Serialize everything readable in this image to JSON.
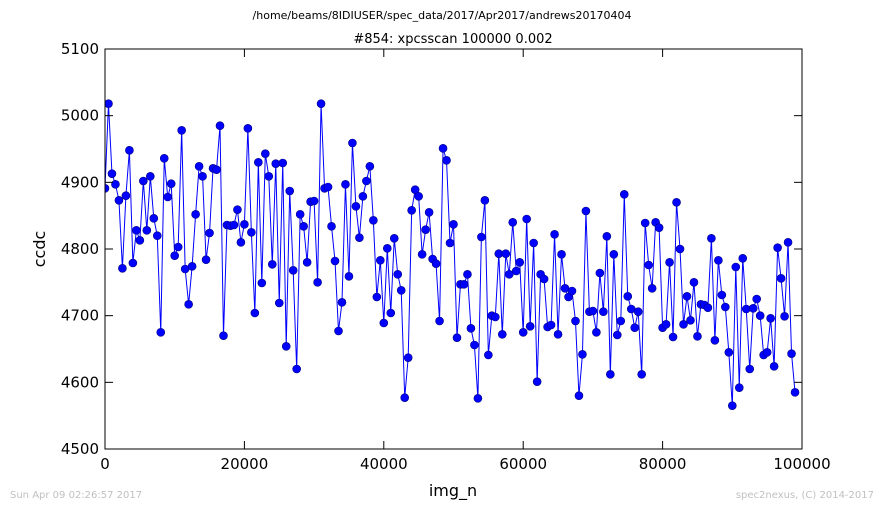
{
  "chart_data": {
    "type": "scatter",
    "suptitle": "/home/beams/8IDIUSER/spec_data/2017/Apr2017/andrews20170404",
    "title": "#854: xpcsscan 100000 0.002",
    "xlabel": "img_n",
    "ylabel": "ccdc",
    "xlim": [
      0,
      100000
    ],
    "ylim": [
      4500,
      5100
    ],
    "xticks": [
      "0",
      "20000",
      "40000",
      "60000",
      "80000",
      "100000"
    ],
    "yticks": [
      "4500",
      "4600",
      "4700",
      "4800",
      "4900",
      "5000",
      "5100"
    ],
    "grid": false,
    "x_step": 500,
    "y": [
      4891,
      5018,
      4913,
      4897,
      4873,
      4771,
      4880,
      4948,
      4779,
      4828,
      4813,
      4902,
      4828,
      4909,
      4846,
      4820,
      4675,
      4936,
      4878,
      4898,
      4790,
      4803,
      4978,
      4770,
      4717,
      4774,
      4852,
      4924,
      4909,
      4784,
      4824,
      4921,
      4919,
      4985,
      4670,
      4836,
      4835,
      4836,
      4859,
      4810,
      4837,
      4981,
      4825,
      4704,
      4930,
      4749,
      4943,
      4909,
      4777,
      4928,
      4719,
      4929,
      4654,
      4887,
      4768,
      4620,
      4852,
      4834,
      4780,
      4871,
      4872,
      4750,
      5018,
      4891,
      4893,
      4834,
      4782,
      4677,
      4720,
      4897,
      4759,
      4959,
      4864,
      4817,
      4879,
      4902,
      4924,
      4843,
      4728,
      4783,
      4689,
      4801,
      4704,
      4816,
      4762,
      4738,
      4577,
      4637,
      4858,
      4889,
      4879,
      4792,
      4829,
      4855,
      4785,
      4778,
      4692,
      4951,
      4933,
      4809,
      4837,
      4667,
      4747,
      4747,
      4762,
      4681,
      4656,
      4576,
      4818,
      4873,
      4641,
      4700,
      4698,
      4793,
      4672,
      4793,
      4762,
      4840,
      4767,
      4780,
      4675,
      4845,
      4684,
      4809,
      4601,
      4762,
      4755,
      4683,
      4686,
      4822,
      4672,
      4792,
      4741,
      4728,
      4737,
      4692,
      4580,
      4642,
      4857,
      4706,
      4707,
      4675,
      4764,
      4706,
      4819,
      4612,
      4792,
      4671,
      4692,
      4882,
      4729,
      4710,
      4682,
      4706,
      4612,
      4839,
      4776,
      4741,
      4840,
      4832,
      4682,
      4687,
      4780,
      4668,
      4870,
      4800,
      4687,
      4729,
      4693,
      4750,
      4669,
      4717,
      4716,
      4712,
      4816,
      4663,
      4783,
      4731,
      4713,
      4645,
      4565,
      4773,
      4592,
      4786,
      4710,
      4620,
      4711,
      4725,
      4700,
      4641,
      4645,
      4696,
      4624,
      4802,
      4756,
      4699,
      4810,
      4643,
      4585
    ]
  },
  "footer": {
    "left": "Sun Apr 09 02:26:57 2017",
    "right": "spec2nexus, (C) 2014-2017"
  },
  "colors": {
    "series": "#0000ff",
    "marker_edge": "#000080",
    "footer_text": "#c0c0c0"
  }
}
